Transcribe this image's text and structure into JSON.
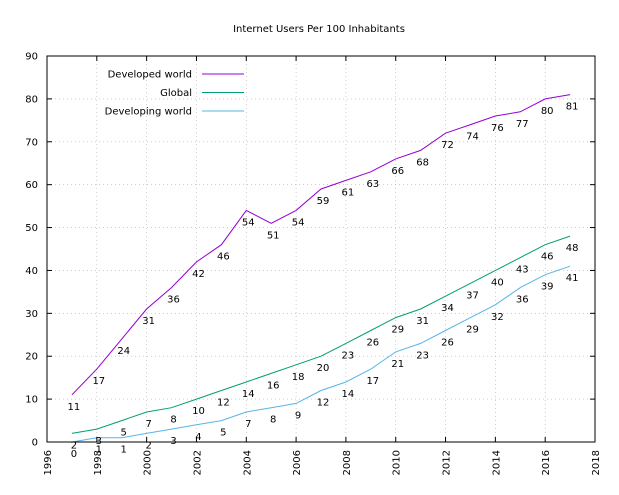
{
  "chart_data": {
    "type": "line",
    "title": "Internet Users Per 100 Inhabitants",
    "xlabel": "",
    "ylabel": "",
    "xlim": [
      1996,
      2018
    ],
    "ylim": [
      0,
      90
    ],
    "xticks": [
      "1996",
      "1998",
      "2000",
      "2002",
      "2004",
      "2006",
      "2008",
      "2010",
      "2012",
      "2014",
      "2016",
      "2018"
    ],
    "yticks": [
      "0",
      "10",
      "20",
      "30",
      "40",
      "50",
      "60",
      "70",
      "80",
      "90"
    ],
    "grid": true,
    "legend_position": "top-left",
    "x": [
      1997,
      1998,
      1999,
      2000,
      2001,
      2002,
      2003,
      2004,
      2005,
      2006,
      2007,
      2008,
      2009,
      2010,
      2011,
      2012,
      2013,
      2014,
      2015,
      2016,
      2017
    ],
    "series": [
      {
        "name": "Developed world",
        "color": "#9400d3",
        "values": [
          11,
          17,
          24,
          31,
          36,
          42,
          46,
          54,
          51,
          54,
          59,
          61,
          63,
          66,
          68,
          72,
          74,
          76,
          77,
          80,
          81
        ]
      },
      {
        "name": "Global",
        "color": "#009e73",
        "values": [
          2,
          3,
          5,
          7,
          8,
          10,
          12,
          14,
          16,
          18,
          20,
          23,
          26,
          29,
          31,
          34,
          37,
          40,
          43,
          46,
          48
        ]
      },
      {
        "name": "Developing world",
        "color": "#56b4e9",
        "values": [
          0,
          1,
          1,
          2,
          3,
          4,
          5,
          7,
          8,
          9,
          12,
          14,
          17,
          21,
          23,
          26,
          29,
          32,
          36,
          39,
          41
        ]
      }
    ]
  }
}
